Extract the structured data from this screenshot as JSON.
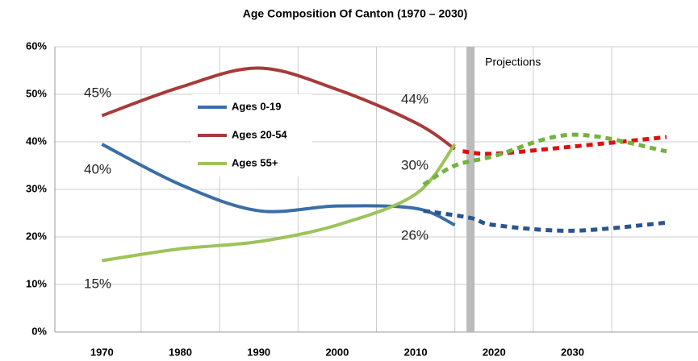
{
  "chart_data": {
    "type": "line",
    "title": "Age Composition Of Canton (1970 – 2030)",
    "xlim": [
      1964,
      2046
    ],
    "xticks": [
      1970,
      1980,
      1990,
      2000,
      2010,
      2020,
      2030
    ],
    "ylim": [
      0,
      60
    ],
    "yticks": [
      {
        "value": 0,
        "label": "0%"
      },
      {
        "value": 10,
        "label": "10%"
      },
      {
        "value": 20,
        "label": "20%"
      },
      {
        "value": 30,
        "label": "30%"
      },
      {
        "value": 40,
        "label": "40%"
      },
      {
        "value": 50,
        "label": "50%"
      },
      {
        "value": 60,
        "label": "60%"
      }
    ],
    "grid": true,
    "legend": "upper left",
    "projection_marker": {
      "x": 2017,
      "label": "Projections"
    },
    "series": [
      {
        "name": "Ages 0-19",
        "color": "#3a6ea5",
        "x": [
          1970,
          1980,
          1990,
          2000,
          2010,
          2015
        ],
        "values": [
          39.5,
          31,
          25.5,
          26.5,
          26,
          22.5
        ],
        "projection": {
          "color": "#2a5590",
          "x": [
            2011,
            2017,
            2020,
            2030,
            2042
          ],
          "values": [
            25.5,
            24,
            22.5,
            21.3,
            23
          ]
        }
      },
      {
        "name": "Ages 20-54",
        "color": "#a83a3a",
        "x": [
          1970,
          1980,
          1990,
          2000,
          2010,
          2015
        ],
        "values": [
          45.5,
          51.5,
          55.5,
          51,
          44,
          38.5
        ],
        "projection": {
          "color": "#e01010",
          "x": [
            2016,
            2020,
            2030,
            2042
          ],
          "values": [
            38,
            37.5,
            39,
            41
          ]
        }
      },
      {
        "name": "Ages 55+",
        "color": "#9dc35a",
        "x": [
          1970,
          1980,
          1990,
          2000,
          2010,
          2015
        ],
        "values": [
          15,
          17.5,
          19,
          22.5,
          29,
          39.5
        ],
        "projection": {
          "color": "#72b340",
          "x": [
            2011,
            2015,
            2020,
            2030,
            2042
          ],
          "values": [
            31,
            35,
            37,
            41.5,
            38
          ]
        }
      }
    ],
    "annotations": [
      {
        "text": "45%"
      },
      {
        "text": "40%"
      },
      {
        "text": "15%"
      },
      {
        "text": "44%"
      },
      {
        "text": "30%"
      },
      {
        "text": "26%"
      }
    ]
  }
}
